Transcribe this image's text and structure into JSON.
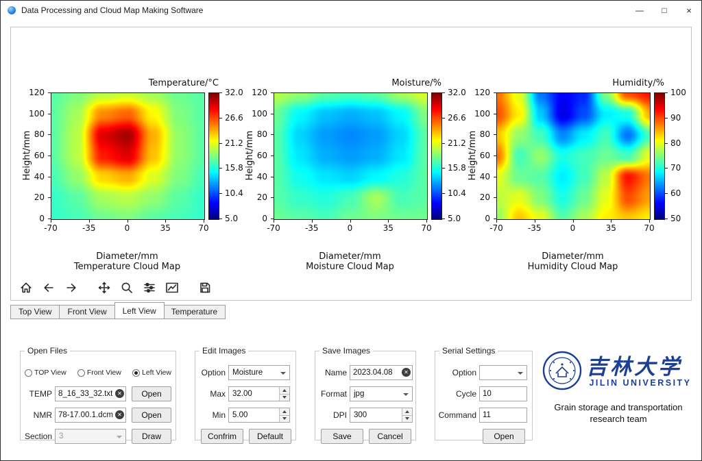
{
  "window": {
    "title": "Data Processing and Cloud Map Making Software",
    "controls": {
      "minimize": "—",
      "maximize": "□",
      "close": "×"
    }
  },
  "toolbar": {
    "buttons": [
      "home",
      "back",
      "forward",
      "pan",
      "zoom",
      "configure-subplots",
      "customize-plot",
      "save"
    ]
  },
  "tabs": {
    "items": [
      {
        "label": "Top View",
        "active": false
      },
      {
        "label": "Front View",
        "active": false
      },
      {
        "label": "Left View",
        "active": true
      },
      {
        "label": "Temperature",
        "active": false
      }
    ]
  },
  "panels": {
    "open_files": {
      "legend": "Open Files",
      "radio_options": [
        {
          "label": "TOP View",
          "selected": false
        },
        {
          "label": "Front View",
          "selected": false
        },
        {
          "label": "Left View",
          "selected": true
        }
      ],
      "temp": {
        "label": "TEMP",
        "value": "8_16_33_32.txt",
        "open_label": "Open"
      },
      "nmr": {
        "label": "NMR",
        "value": "78-17.00.1.dcm",
        "open_label": "Open"
      },
      "section": {
        "label": "Section",
        "value": "3",
        "disabled": true,
        "draw_label": "Draw"
      }
    },
    "edit_images": {
      "legend": "Edit Images",
      "option": {
        "label": "Option",
        "value": "Moisture"
      },
      "max": {
        "label": "Max",
        "value": "32.00"
      },
      "min": {
        "label": "Min",
        "value": "5.00"
      },
      "confirm_label": "Confrim",
      "default_label": "Default"
    },
    "save_images": {
      "legend": "Save Images",
      "name": {
        "label": "Name",
        "value": "2023.04.08"
      },
      "format": {
        "label": "Format",
        "value": "jpg"
      },
      "dpi": {
        "label": "DPI",
        "value": "300"
      },
      "save_label": "Save",
      "cancel_label": "Cancel"
    },
    "serial_settings": {
      "legend": "Serial Settings",
      "option": {
        "label": "Option",
        "value": ""
      },
      "cycle": {
        "label": "Cycle",
        "value": "10"
      },
      "command": {
        "label": "Command",
        "value": "11"
      },
      "open_label": "Open"
    }
  },
  "branding": {
    "university_cn": "吉林大学",
    "university_en": "JILIN UNIVERSITY",
    "team_line1": "Grain storage and transportation",
    "team_line2": "research team",
    "brand_color": "#1c3f94"
  },
  "chart_data": [
    {
      "type": "heatmap",
      "title": "Temperature/°C",
      "caption": "Temperature Cloud Map",
      "xlabel": "Diameter/mm",
      "ylabel": "Height/mm",
      "xlim": [
        -70,
        70
      ],
      "ylim": [
        0,
        120
      ],
      "xticks": [
        -70,
        -35,
        0,
        35,
        70
      ],
      "yticks": [
        0,
        20,
        40,
        60,
        80,
        100,
        120
      ],
      "vmin": 5.0,
      "vmax": 32.0,
      "colorbar_ticks": [
        "32.0",
        "26.6",
        "21.2",
        "15.8",
        "10.4",
        "5.0"
      ],
      "colormap": "jet",
      "rows_top_to_bottom": true,
      "values": [
        [
          17.5,
          18.5,
          20.0,
          20.5,
          19.5,
          18.0,
          17.5
        ],
        [
          17.5,
          19.5,
          25.0,
          26.0,
          22.0,
          18.5,
          17.5
        ],
        [
          17.5,
          20.0,
          29.5,
          31.0,
          24.0,
          19.0,
          17.5
        ],
        [
          17.5,
          20.0,
          28.0,
          29.5,
          23.5,
          19.0,
          17.5
        ],
        [
          17.0,
          19.0,
          23.0,
          24.0,
          21.0,
          18.5,
          17.0
        ],
        [
          16.5,
          17.5,
          19.5,
          20.0,
          19.0,
          17.5,
          16.5
        ],
        [
          16.5,
          17.0,
          18.0,
          18.5,
          17.5,
          17.0,
          16.5
        ]
      ]
    },
    {
      "type": "heatmap",
      "title": "Moisture/%",
      "caption": "Moisture Cloud Map",
      "xlabel": "Diameter/mm",
      "ylabel": "Height/mm",
      "xlim": [
        -70,
        70
      ],
      "ylim": [
        0,
        120
      ],
      "xticks": [
        -70,
        -35,
        0,
        35,
        70
      ],
      "yticks": [
        0,
        20,
        40,
        60,
        80,
        100,
        120
      ],
      "vmin": 5.0,
      "vmax": 32.0,
      "colorbar_ticks": [
        "32.0",
        "26.6",
        "21.2",
        "15.8",
        "10.4",
        "5.0"
      ],
      "colormap": "jet",
      "rows_top_to_bottom": true,
      "values": [
        [
          20.0,
          19.0,
          17.5,
          17.0,
          17.5,
          19.5,
          21.0
        ],
        [
          18.0,
          15.0,
          13.5,
          13.0,
          13.5,
          15.0,
          18.5
        ],
        [
          17.5,
          14.0,
          12.5,
          12.0,
          12.5,
          14.0,
          17.5
        ],
        [
          17.5,
          14.5,
          13.0,
          12.5,
          13.0,
          14.5,
          17.5
        ],
        [
          17.5,
          15.5,
          14.5,
          14.0,
          15.0,
          16.0,
          17.5
        ],
        [
          17.5,
          16.5,
          16.0,
          17.0,
          19.5,
          17.0,
          17.5
        ],
        [
          18.0,
          17.5,
          17.0,
          18.0,
          18.5,
          18.0,
          18.0
        ]
      ]
    },
    {
      "type": "heatmap",
      "title": "Humidity/%",
      "caption": "Humidity Cloud Map",
      "xlabel": "Diameter/mm",
      "ylabel": "Height/mm",
      "xlim": [
        -70,
        70
      ],
      "ylim": [
        0,
        120
      ],
      "xticks": [
        -70,
        -35,
        0,
        35,
        70
      ],
      "yticks": [
        0,
        20,
        40,
        60,
        80,
        100,
        120
      ],
      "vmin": 50,
      "vmax": 100,
      "colorbar_ticks": [
        "100",
        "90",
        "80",
        "70",
        "60",
        "50"
      ],
      "colormap": "jet",
      "rows_top_to_bottom": true,
      "values": [
        [
          88,
          80,
          62,
          56,
          58,
          75,
          90,
          93
        ],
        [
          90,
          82,
          66,
          55,
          60,
          68,
          70,
          85
        ],
        [
          84,
          76,
          72,
          63,
          68,
          72,
          62,
          72
        ],
        [
          88,
          72,
          76,
          70,
          72,
          74,
          72,
          80
        ],
        [
          80,
          74,
          73,
          68,
          72,
          78,
          93,
          88
        ],
        [
          78,
          80,
          75,
          70,
          74,
          80,
          90,
          86
        ],
        [
          76,
          84,
          80,
          73,
          77,
          82,
          84,
          82
        ]
      ]
    }
  ]
}
